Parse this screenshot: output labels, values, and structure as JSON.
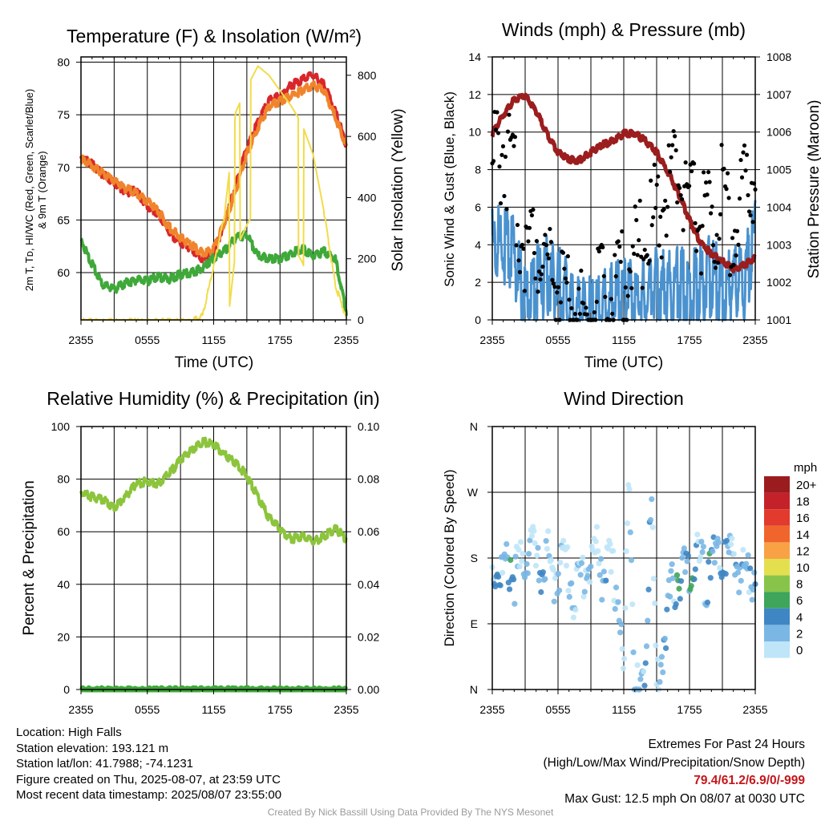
{
  "panels": {
    "temperature": {
      "title": "Temperature (F) & Insolation (W/m²)",
      "ylabel_left_line1": "2m T, Tᴅ, HI/WC (Red, Green, Scarlet/Blue)",
      "ylabel_left_line2": "& 9m T (Orange)",
      "ylabel_right": "Solar Insolation (Yellow)",
      "xlabel": "Time (UTC)"
    },
    "winds": {
      "title": "Winds (mph) & Pressure (mb)",
      "ylabel_left": "Sonic Wind & Gust (Blue, Black)",
      "ylabel_right": "Station Pressure (Maroon)",
      "xlabel": "Time (UTC)"
    },
    "humidity": {
      "title": "Relative Humidity (%) & Precipitation (in)",
      "ylabel_left": "Percent & Precipitation"
    },
    "direction": {
      "title": "Wind Direction",
      "ylabel_left": "Direction (Colored By Speed)",
      "legend_title": "mph",
      "legend_labels": [
        "20+",
        "18",
        "16",
        "14",
        "12",
        "10",
        "8",
        "6",
        "4",
        "2",
        "0"
      ],
      "legend_colors": [
        "#9b1c1f",
        "#c4222a",
        "#e23a2c",
        "#f0652c",
        "#f8a245",
        "#e4df4f",
        "#88c44a",
        "#3ea55a",
        "#3f86c4",
        "#7ab7e4",
        "#bfe5f8"
      ]
    }
  },
  "info": {
    "location": "Location: High Falls",
    "elevation": "Station elevation: 193.121 m",
    "latlon": "Station lat/lon: 41.7988; -74.1231",
    "created": "Figure created on Thu, 2025-08-07, at 23:59 UTC",
    "recent": "Most recent data timestamp: 2025/08/07 23:55:00",
    "extremes_title": "Extremes For Past 24 Hours",
    "extremes_legend": "(High/Low/Max Wind/Precipitation/Snow Depth)",
    "extremes_values": "79.4/61.2/6.9/0/-999",
    "max_gust": "Max Gust: 12.5 mph On 08/07 at 0030 UTC",
    "credit": "Created By Nick Bassill Using Data Provided By The NYS Mesonet"
  },
  "chart_data": [
    {
      "type": "line",
      "title": "Temperature (F) & Insolation (W/m²)",
      "xlabel": "Time (UTC)",
      "x_ticks": [
        "2355",
        "0555",
        "1155",
        "1755",
        "2355"
      ],
      "x_unit": "hours since 2355 UTC",
      "x": [
        0,
        1,
        2,
        3,
        4,
        5,
        6,
        7,
        8,
        9,
        10,
        11,
        12,
        13,
        14,
        15,
        16,
        17,
        18,
        19,
        20,
        21,
        22,
        23,
        24
      ],
      "ylim_left": [
        55.5,
        80.5
      ],
      "ylim_right": [
        0,
        860
      ],
      "yticks_left": [
        60,
        65,
        70,
        75,
        80
      ],
      "yticks_right": [
        0,
        200,
        400,
        600,
        800
      ],
      "grid": true,
      "series": [
        {
          "color": "#d8262a",
          "axis": "left",
          "values": [
            71.2,
            70.5,
            69.5,
            68.8,
            67.8,
            68.0,
            66.5,
            65.8,
            64.0,
            63.0,
            62.5,
            61.5,
            62.0,
            65.0,
            68.5,
            72.0,
            74.5,
            76.5,
            77.0,
            78.0,
            78.5,
            79.0,
            78.0,
            75.5,
            72.3
          ]
        },
        {
          "color": "#f0842c",
          "axis": "left",
          "values": [
            71.0,
            70.4,
            69.6,
            68.9,
            68.2,
            67.8,
            67.0,
            66.0,
            64.5,
            63.5,
            62.8,
            62.0,
            62.4,
            65.0,
            68.0,
            71.5,
            74.0,
            76.0,
            76.5,
            77.0,
            77.5,
            78.0,
            77.5,
            75.0,
            72.2
          ]
        },
        {
          "color": "#3fa83a",
          "axis": "left",
          "values": [
            63.3,
            61.0,
            59.0,
            58.6,
            59.2,
            59.5,
            59.4,
            59.8,
            59.6,
            60.0,
            60.2,
            60.6,
            61.6,
            62.3,
            63.5,
            63.8,
            61.8,
            61.5,
            61.5,
            62.0,
            62.5,
            61.8,
            62.2,
            61.5,
            56.5
          ]
        },
        {
          "color": "#f2dc4a",
          "axis": "right",
          "values": [
            0,
            0,
            0,
            0,
            0,
            0,
            0,
            0,
            0,
            0,
            0,
            20,
            180,
            350,
            680,
            760,
            830,
            800,
            750,
            700,
            640,
            540,
            350,
            120,
            10
          ]
        }
      ]
    },
    {
      "type": "line",
      "title": "Winds (mph) & Pressure (mb)",
      "xlabel": "Time (UTC)",
      "x_ticks": [
        "2355",
        "0555",
        "1155",
        "1755",
        "2355"
      ],
      "x_unit": "hours since 2355 UTC",
      "x": [
        0,
        1,
        2,
        3,
        4,
        5,
        6,
        7,
        8,
        9,
        10,
        11,
        12,
        13,
        14,
        15,
        16,
        17,
        18,
        19,
        20,
        21,
        22,
        23,
        24
      ],
      "ylim_left": [
        0,
        14
      ],
      "ylim_right": [
        1001,
        1008
      ],
      "yticks_left": [
        0,
        2,
        4,
        6,
        8,
        10,
        12,
        14
      ],
      "yticks_right": [
        1001,
        1002,
        1003,
        1004,
        1005,
        1006,
        1007,
        1008
      ],
      "grid": true,
      "series": [
        {
          "color": "#4a92cf",
          "axis": "left",
          "values": [
            5.0,
            5.0,
            4.5,
            2.0,
            3.0,
            3.5,
            3.0,
            2.0,
            1.5,
            1.2,
            1.5,
            2.0,
            2.5,
            2.2,
            2.0,
            3.0,
            2.5,
            3.0,
            2.5,
            3.0,
            3.5,
            2.5,
            3.0,
            3.0,
            5.5
          ]
        },
        {
          "color": "#9b1d1d",
          "axis": "right",
          "values": [
            1006.0,
            1006.5,
            1006.9,
            1007.0,
            1006.6,
            1006.0,
            1005.5,
            1005.3,
            1005.3,
            1005.5,
            1005.7,
            1005.8,
            1006.0,
            1006.0,
            1005.8,
            1005.5,
            1005.0,
            1004.4,
            1003.7,
            1003.1,
            1002.8,
            1002.6,
            1002.4,
            1002.5,
            1002.7
          ]
        },
        {
          "color": "#000000",
          "axis": "left",
          "marker": "dot",
          "values": [
            9.5,
            11.0,
            8.5,
            5.5,
            6.0,
            5.0,
            3.5,
            2.5,
            1.5,
            2.0,
            2.5,
            3.0,
            4.0,
            4.5,
            6.0,
            7.0,
            8.5,
            9.5,
            8.0,
            7.0,
            6.5,
            8.0,
            6.5,
            8.5,
            10.0
          ]
        }
      ]
    },
    {
      "type": "line",
      "title": "Relative Humidity (%) & Precipitation (in)",
      "ylabel": "Percent & Precipitation",
      "x_ticks": [
        "2355",
        "0555",
        "1155",
        "1755",
        "2355"
      ],
      "x_unit": "hours since 2355 UTC",
      "x": [
        0,
        1,
        2,
        3,
        4,
        5,
        6,
        7,
        8,
        9,
        10,
        11,
        12,
        13,
        14,
        15,
        16,
        17,
        18,
        19,
        20,
        21,
        22,
        23,
        24
      ],
      "ylim_left": [
        0,
        100
      ],
      "ylim_right": [
        0,
        0.1
      ],
      "yticks_left": [
        0,
        20,
        40,
        60,
        80,
        100
      ],
      "yticks_right": [
        "0.00",
        "0.02",
        "0.04",
        "0.06",
        "0.08",
        "0.10"
      ],
      "grid": true,
      "series": [
        {
          "color": "#8cc43c",
          "axis": "left",
          "values": [
            76,
            74,
            73,
            70,
            74,
            79,
            80,
            79,
            83,
            88,
            92,
            95,
            94,
            90,
            87,
            82,
            74,
            66,
            62,
            58,
            59,
            57,
            59,
            62,
            58
          ]
        },
        {
          "color": "#3fa83a",
          "axis": "right",
          "values": [
            0,
            0,
            0,
            0,
            0,
            0,
            0,
            0,
            0,
            0,
            0,
            0,
            0,
            0,
            0,
            0,
            0,
            0,
            0,
            0,
            0,
            0,
            0,
            0,
            0
          ]
        }
      ]
    },
    {
      "type": "scatter",
      "title": "Wind Direction",
      "ylabel": "Direction (Colored By Speed)",
      "x_ticks": [
        "2355",
        "0555",
        "1155",
        "1755",
        "2355"
      ],
      "x_unit": "hours since 2355 UTC",
      "y_ticks": [
        "N",
        "E",
        "S",
        "W",
        "N"
      ],
      "y_unit": "degrees",
      "ylim": [
        0,
        360
      ],
      "grid": true,
      "series": [
        {
          "name": "direction",
          "x": [
            0,
            0.5,
            1,
            1.5,
            2,
            2.5,
            3,
            3.5,
            4,
            4.5,
            5,
            5.5,
            6,
            6.5,
            7,
            7.5,
            8,
            8.5,
            9,
            9.5,
            10,
            10.5,
            11,
            11.5,
            12,
            12.5,
            13,
            13.5,
            14,
            14.5,
            15,
            15.5,
            16,
            16.5,
            17,
            17.5,
            18,
            18.5,
            19,
            19.5,
            20,
            20.5,
            21,
            21.5,
            22,
            22.5,
            23,
            23.5,
            24
          ],
          "y": [
            180,
            185,
            178,
            190,
            175,
            182,
            200,
            230,
            185,
            175,
            210,
            160,
            190,
            200,
            180,
            150,
            170,
            185,
            195,
            210,
            180,
            190,
            175,
            150,
            30,
            340,
            20,
            10,
            60,
            300,
            20,
            70,
            130,
            160,
            170,
            185,
            160,
            200,
            190,
            170,
            195,
            185,
            200,
            200,
            195,
            190,
            180,
            185,
            180
          ],
          "speed": [
            3,
            4,
            3,
            5,
            3,
            2,
            3,
            1,
            2,
            3,
            3,
            1,
            1,
            2,
            2,
            1,
            3,
            1,
            2,
            1,
            2,
            3,
            2,
            1,
            3,
            1,
            2,
            4,
            3,
            2,
            1,
            3,
            4,
            3,
            5,
            4,
            6,
            4,
            3,
            3,
            5,
            4,
            3,
            4,
            3,
            2,
            4,
            3,
            4
          ]
        }
      ]
    }
  ]
}
